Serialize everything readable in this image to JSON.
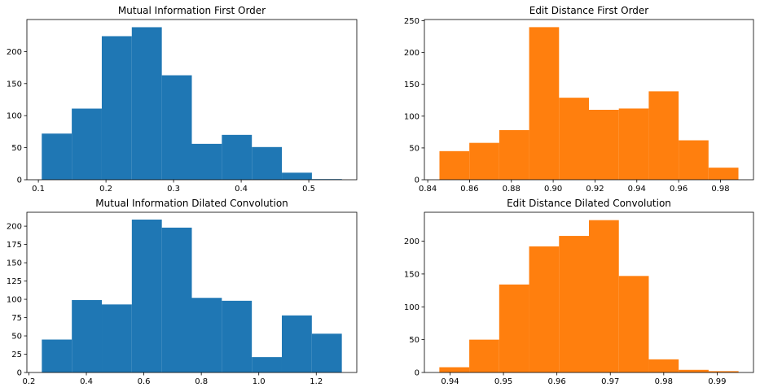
{
  "chart_data": [
    {
      "type": "bar",
      "title": "Mutual Information First Order",
      "xlabel": "",
      "ylabel": "",
      "color": "#1f77b4",
      "bin_edges": [
        0.105,
        0.1494,
        0.1938,
        0.2382,
        0.2826,
        0.327,
        0.3714,
        0.4158,
        0.4602,
        0.5046,
        0.549
      ],
      "values": [
        72,
        111,
        224,
        238,
        163,
        56,
        70,
        51,
        11,
        1
      ],
      "xlim": [
        0.083,
        0.571
      ],
      "ylim": [
        0,
        250
      ],
      "xticks": [
        0.1,
        0.2,
        0.3,
        0.4,
        0.5
      ],
      "xtick_labels": [
        "0.1",
        "0.2",
        "0.3",
        "0.4",
        "0.5"
      ],
      "yticks": [
        0,
        50,
        100,
        150,
        200
      ],
      "ytick_labels": [
        "0",
        "50",
        "100",
        "150",
        "200"
      ]
    },
    {
      "type": "bar",
      "title": "Edit Distance First Order",
      "xlabel": "",
      "ylabel": "",
      "color": "#ff7f0e",
      "bin_edges": [
        0.8456,
        0.8599,
        0.8742,
        0.8885,
        0.9028,
        0.9171,
        0.9314,
        0.9457,
        0.96,
        0.9743,
        0.9886
      ],
      "values": [
        45,
        58,
        78,
        240,
        129,
        110,
        112,
        139,
        62,
        19
      ],
      "xlim": [
        0.8384,
        0.9958
      ],
      "ylim": [
        0,
        252
      ],
      "xticks": [
        0.84,
        0.86,
        0.88,
        0.9,
        0.92,
        0.94,
        0.96,
        0.98
      ],
      "xtick_labels": [
        "0.84",
        "0.86",
        "0.88",
        "0.90",
        "0.92",
        "0.94",
        "0.96",
        "0.98"
      ],
      "yticks": [
        0,
        50,
        100,
        150,
        200,
        250
      ],
      "ytick_labels": [
        "0",
        "50",
        "100",
        "150",
        "200",
        "250"
      ]
    },
    {
      "type": "bar",
      "title": "Mutual Information Dilated Convolution",
      "xlabel": "",
      "ylabel": "",
      "color": "#1f77b4",
      "bin_edges": [
        0.245,
        0.3494,
        0.4538,
        0.5582,
        0.6626,
        0.767,
        0.8714,
        0.9758,
        1.0802,
        1.1846,
        1.289
      ],
      "values": [
        45,
        99,
        93,
        209,
        198,
        102,
        98,
        21,
        78,
        53
      ],
      "xlim": [
        0.193,
        1.341
      ],
      "ylim": [
        0,
        219
      ],
      "xticks": [
        0.2,
        0.4,
        0.6,
        0.8,
        1.0,
        1.2
      ],
      "xtick_labels": [
        "0.2",
        "0.4",
        "0.6",
        "0.8",
        "1.0",
        "1.2"
      ],
      "yticks": [
        0,
        25,
        50,
        75,
        100,
        125,
        150,
        175,
        200
      ],
      "ytick_labels": [
        "0",
        "25",
        "50",
        "75",
        "100",
        "125",
        "150",
        "175",
        "200"
      ]
    },
    {
      "type": "bar",
      "title": "Edit Distance Dilated Convolution",
      "xlabel": "",
      "ylabel": "",
      "color": "#ff7f0e",
      "bin_edges": [
        0.938,
        0.9436,
        0.9492,
        0.9548,
        0.9604,
        0.966,
        0.9716,
        0.9772,
        0.9828,
        0.9884,
        0.994
      ],
      "values": [
        8,
        50,
        134,
        192,
        208,
        232,
        147,
        20,
        4,
        2
      ],
      "xlim": [
        0.9352,
        0.9968
      ],
      "ylim": [
        0,
        244
      ],
      "xticks": [
        0.94,
        0.95,
        0.96,
        0.97,
        0.98,
        0.99
      ],
      "xtick_labels": [
        "0.94",
        "0.95",
        "0.96",
        "0.97",
        "0.98",
        "0.99"
      ],
      "yticks": [
        0,
        50,
        100,
        150,
        200
      ],
      "ytick_labels": [
        "0",
        "50",
        "100",
        "150",
        "200"
      ]
    }
  ]
}
